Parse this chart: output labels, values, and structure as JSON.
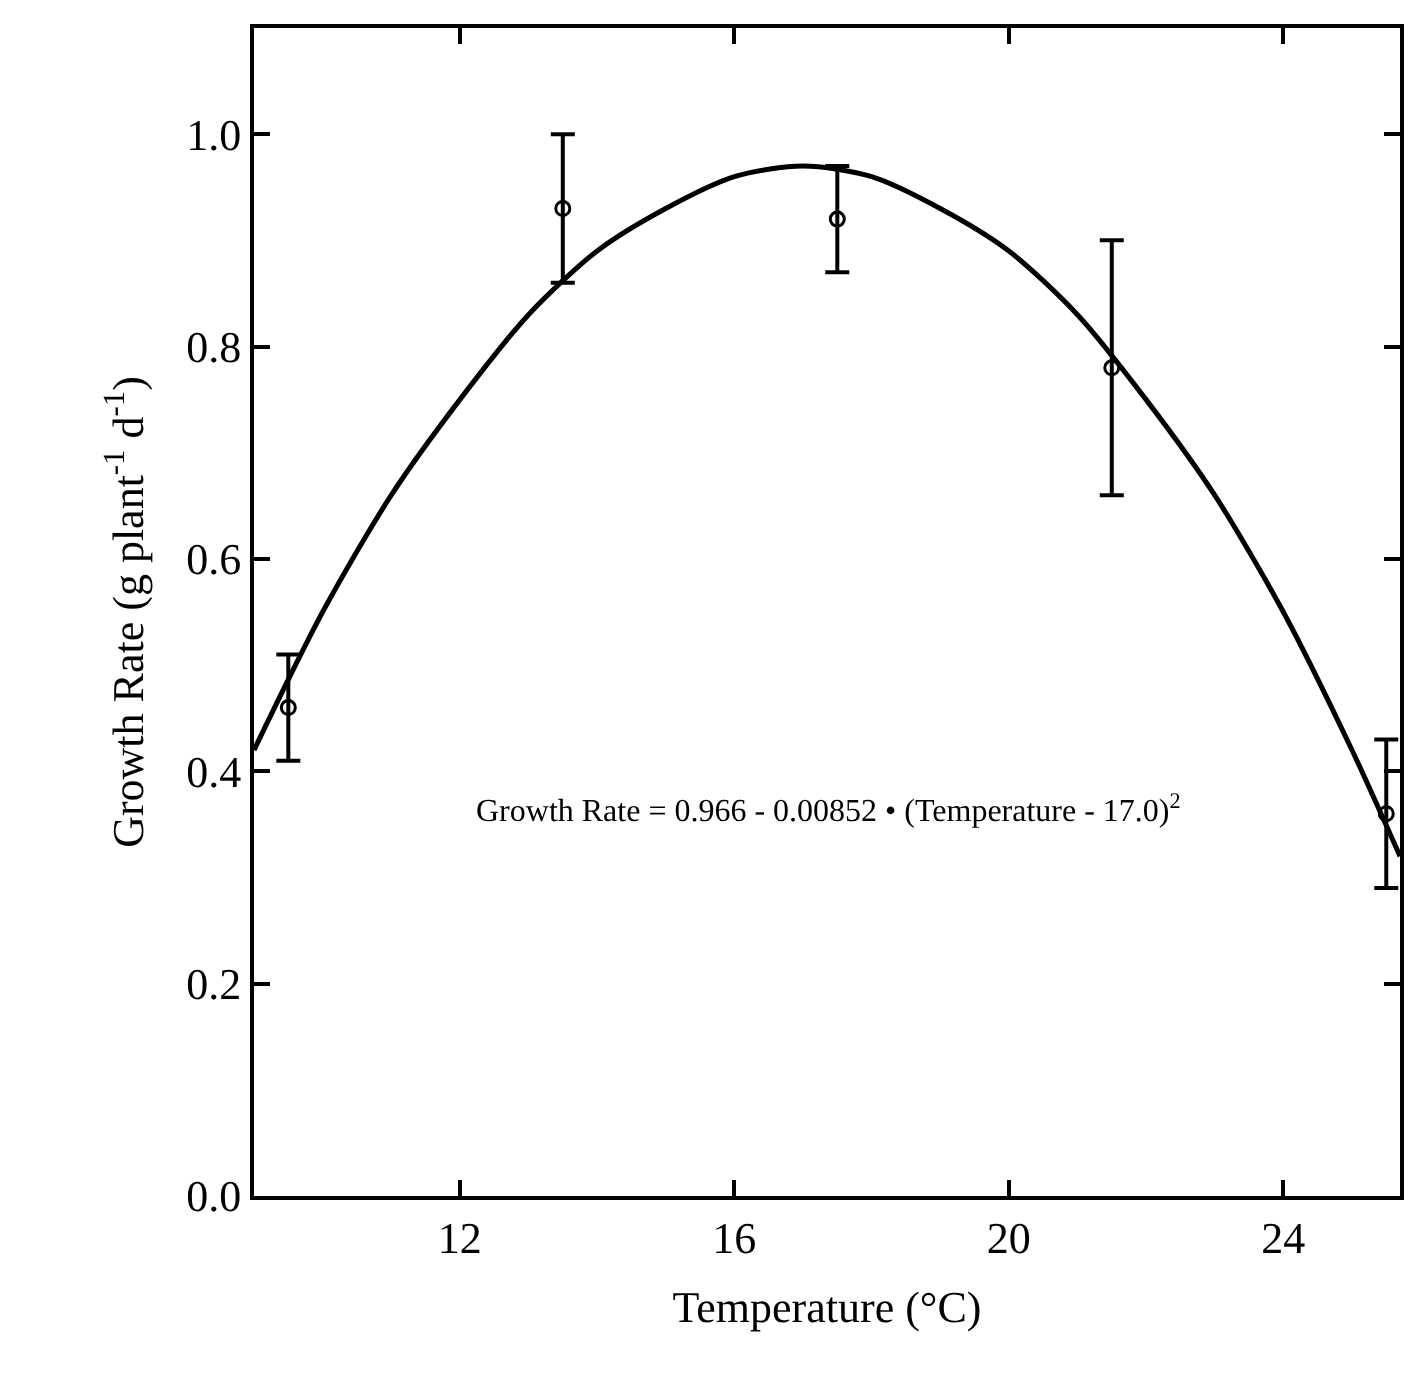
{
  "chart_data": {
    "type": "scatter",
    "xlabel": "Temperature (°C)",
    "ylabel": "Growth Rate (g plant$^{-1}$ d$^{-1}$)",
    "xlim": [
      9,
      25.7
    ],
    "xticks": [
      12,
      16,
      20,
      24
    ],
    "ylim": [
      0,
      1.1
    ],
    "yticks": [
      {
        "value": 0,
        "label": "0.0"
      },
      {
        "value": 0.2,
        "label": "0.2"
      },
      {
        "value": 0.4,
        "label": "0.4"
      },
      {
        "value": 0.6,
        "label": "0.6"
      },
      {
        "value": 0.8,
        "label": "0.8"
      },
      {
        "value": 1.0,
        "label": "1.0"
      }
    ],
    "annotations": [
      "Growth Rate = 0.966 - 0.00852 • (Temperature - 17.0)$^{2}$"
    ],
    "series": [
      {
        "marker": "circle",
        "color": "#000000",
        "x": [
          9.5,
          13.5,
          17.5,
          21.5,
          25.5
        ],
        "values": [
          0.46,
          0.93,
          0.92,
          0.78,
          0.36
        ],
        "errors": [
          0.05,
          0.07,
          0.05,
          0.12,
          0.07
        ]
      },
      {
        "type": "line",
        "marker": "none",
        "line_style": "solid",
        "color": "#000000",
        "x": [
          9,
          10,
          11,
          12,
          13,
          14,
          15,
          16,
          17,
          18,
          19,
          20,
          21,
          22,
          23,
          24,
          25,
          25.7
        ],
        "values": [
          0.42,
          0.55,
          0.66,
          0.75,
          0.83,
          0.89,
          0.93,
          0.96,
          0.97,
          0.96,
          0.93,
          0.89,
          0.83,
          0.75,
          0.66,
          0.55,
          0.42,
          0.32
        ]
      }
    ]
  }
}
